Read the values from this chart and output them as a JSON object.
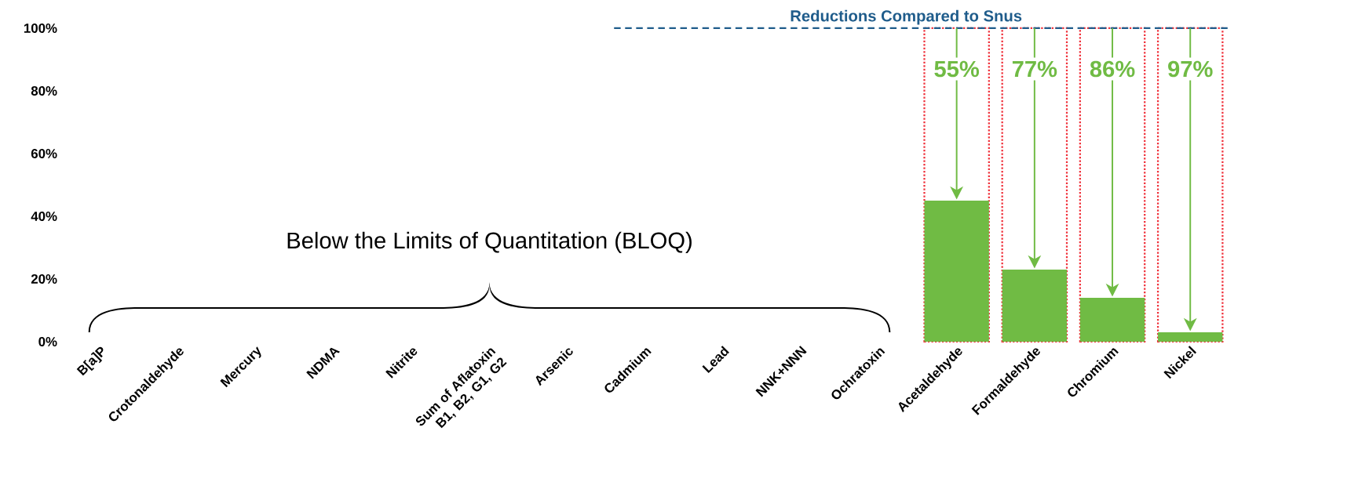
{
  "chart_data": {
    "type": "bar",
    "categories": [
      "B[a]P",
      "Crotonaldehyde",
      "Mercury",
      "NDMA",
      "Nitrite",
      "Sum of Aflatoxin B1, B2, G1, G2",
      "Arsenic",
      "Cadmium",
      "Lead",
      "NNK+NNN",
      "Ochratoxin",
      "Acetaldehyde",
      "Formaldehyde",
      "Chromium",
      "Nickel"
    ],
    "series": [
      {
        "color": "#f0303a",
        "line_style": "dotted",
        "values": [
          null,
          null,
          null,
          null,
          null,
          null,
          null,
          null,
          null,
          null,
          null,
          100,
          100,
          100,
          100
        ]
      },
      {
        "color": "#70bb44",
        "values": [
          null,
          null,
          null,
          null,
          null,
          null,
          null,
          null,
          null,
          null,
          null,
          45,
          23,
          14,
          3
        ]
      }
    ],
    "ylim": [
      0,
      100
    ],
    "yticks": [
      {
        "value": 0,
        "label": "0%"
      },
      {
        "value": 20,
        "label": "20%"
      },
      {
        "value": 40,
        "label": "40%"
      },
      {
        "value": 60,
        "label": "60%"
      },
      {
        "value": 80,
        "label": "80%"
      },
      {
        "value": 100,
        "label": "100%"
      }
    ],
    "ref_lines": [
      {
        "axis": "y",
        "value": 100,
        "label": "Reductions Compared to Snus",
        "color": "#1f5c8b",
        "line_style": "dashed"
      }
    ],
    "annotations": [
      "Below the Limits of Quantitation (BLOQ)",
      "55%",
      "77%",
      "86%",
      "97%"
    ]
  }
}
